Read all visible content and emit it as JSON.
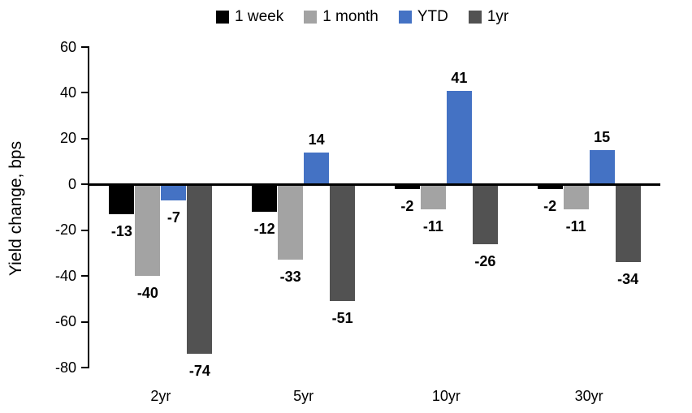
{
  "chart_data": {
    "type": "bar",
    "title": "",
    "xlabel": "",
    "ylabel": "Yield change, bps",
    "categories": [
      "2yr",
      "5yr",
      "10yr",
      "30yr"
    ],
    "series": [
      {
        "name": "1 week",
        "color": "#000000",
        "values": [
          -13,
          -12,
          -2,
          -2
        ]
      },
      {
        "name": "1 month",
        "color": "#A3A3A3",
        "values": [
          -40,
          -33,
          -11,
          -11
        ]
      },
      {
        "name": "YTD",
        "color": "#4472C4",
        "values": [
          -7,
          14,
          41,
          15
        ]
      },
      {
        "name": "1yr",
        "color": "#525252",
        "values": [
          -74,
          -51,
          -26,
          -34
        ]
      }
    ],
    "y_axis": {
      "min": -80,
      "max": 60,
      "step": 20,
      "ticks": [
        60,
        40,
        20,
        0,
        -20,
        -40,
        -60,
        -80
      ]
    },
    "legend_position": "top",
    "grid": false,
    "value_labels": true,
    "axis_color": "#000000",
    "background_color": "#FFFFFF"
  }
}
